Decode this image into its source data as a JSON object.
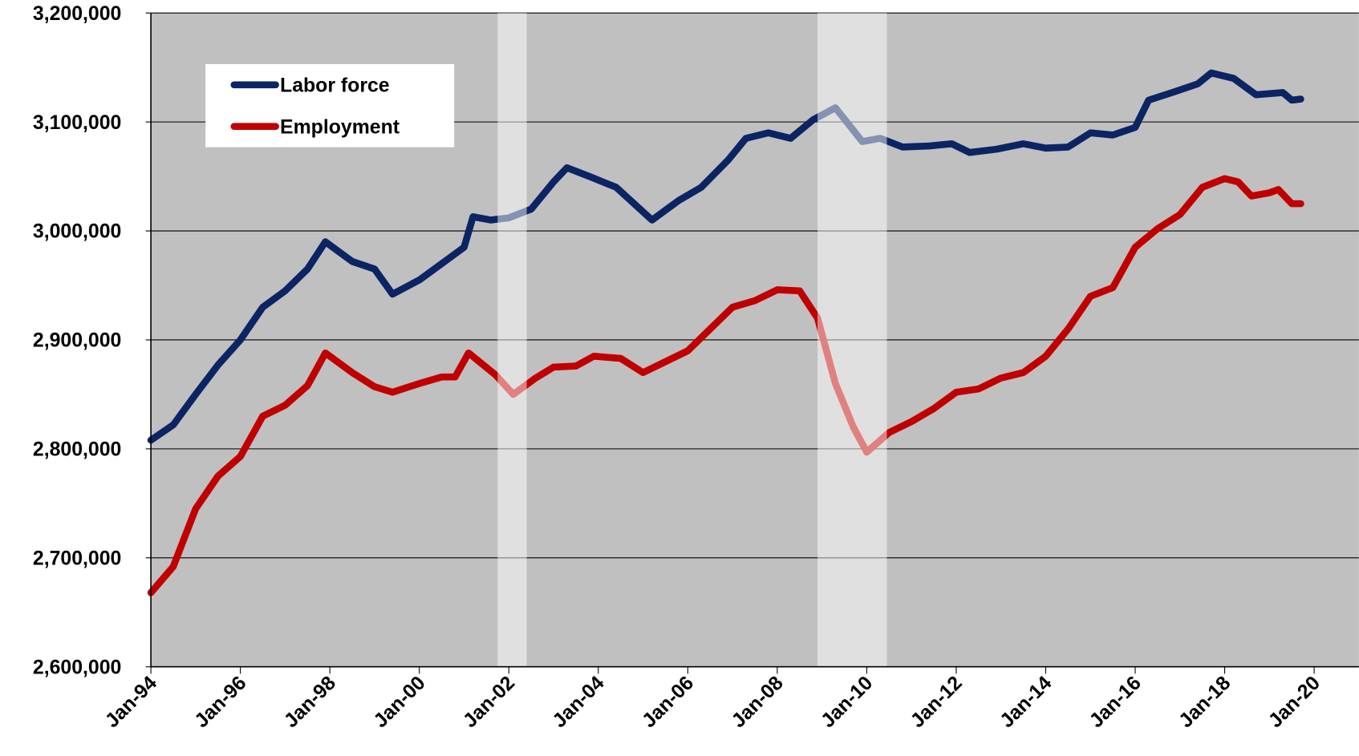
{
  "chart_data": {
    "type": "line",
    "xlim": [
      1994,
      2021
    ],
    "ylim": [
      2600000,
      3200000
    ],
    "xticks": [
      {
        "value": 1994,
        "label": "Jan-94"
      },
      {
        "value": 1996,
        "label": "Jan-96"
      },
      {
        "value": 1998,
        "label": "Jan-98"
      },
      {
        "value": 2000,
        "label": "Jan-00"
      },
      {
        "value": 2002,
        "label": "Jan-02"
      },
      {
        "value": 2004,
        "label": "Jan-04"
      },
      {
        "value": 2006,
        "label": "Jan-06"
      },
      {
        "value": 2008,
        "label": "Jan-08"
      },
      {
        "value": 2010,
        "label": "Jan-10"
      },
      {
        "value": 2012,
        "label": "Jan-12"
      },
      {
        "value": 2014,
        "label": "Jan-14"
      },
      {
        "value": 2016,
        "label": "Jan-16"
      },
      {
        "value": 2018,
        "label": "Jan-18"
      },
      {
        "value": 2020,
        "label": "Jan-20"
      }
    ],
    "yticks": [
      {
        "value": 2600000,
        "label": "2,600,000"
      },
      {
        "value": 2700000,
        "label": "2,700,000"
      },
      {
        "value": 2800000,
        "label": "2,800,000"
      },
      {
        "value": 2900000,
        "label": "2,900,000"
      },
      {
        "value": 3000000,
        "label": "3,000,000"
      },
      {
        "value": 3100000,
        "label": "3,100,000"
      },
      {
        "value": 3200000,
        "label": "3,200,000"
      }
    ],
    "grid": true,
    "background": "#c0c0c0",
    "shaded_ranges": [
      [
        2001.75,
        2002.4
      ],
      [
        2008.9,
        2010.45
      ]
    ],
    "legend": "upper left",
    "series": [
      {
        "name": "Labor force",
        "color": "#0b2463",
        "x": [
          1994.0,
          1994.5,
          1995.0,
          1995.5,
          1996.0,
          1996.5,
          1997.0,
          1997.5,
          1997.9,
          1998.5,
          1999.0,
          1999.4,
          2000.0,
          2000.5,
          2001.0,
          2001.2,
          2001.6,
          2002.0,
          2002.5,
          2003.0,
          2003.3,
          2003.8,
          2004.4,
          2004.8,
          2005.2,
          2005.8,
          2006.3,
          2006.9,
          2007.3,
          2007.8,
          2008.3,
          2008.8,
          2009.3,
          2009.9,
          2010.3,
          2010.8,
          2011.4,
          2011.9,
          2012.3,
          2012.9,
          2013.5,
          2014.0,
          2014.5,
          2015.0,
          2015.5,
          2016.0,
          2016.3,
          2016.9,
          2017.4,
          2017.7,
          2018.2,
          2018.7,
          2019.3,
          2019.5,
          2019.7
        ],
        "values": [
          2808000,
          2822000,
          2850000,
          2877000,
          2900000,
          2930000,
          2945000,
          2965000,
          2990000,
          2972000,
          2965000,
          2942000,
          2955000,
          2970000,
          2985000,
          3013000,
          3010000,
          3012000,
          3020000,
          3045000,
          3058000,
          3050000,
          3040000,
          3025000,
          3010000,
          3028000,
          3040000,
          3065000,
          3085000,
          3090000,
          3085000,
          3102000,
          3113000,
          3082000,
          3085000,
          3077000,
          3078000,
          3080000,
          3072000,
          3075000,
          3080000,
          3076000,
          3077000,
          3090000,
          3088000,
          3095000,
          3120000,
          3128000,
          3135000,
          3145000,
          3140000,
          3125000,
          3127000,
          3120000,
          3121000
        ]
      },
      {
        "name": "Employment",
        "color": "#c00000",
        "x": [
          1994.0,
          1994.5,
          1995.0,
          1995.5,
          1996.0,
          1996.5,
          1997.0,
          1997.5,
          1997.9,
          1998.5,
          1999.0,
          1999.4,
          2000.0,
          2000.5,
          2000.8,
          2001.1,
          2001.7,
          2002.1,
          2002.6,
          2003.0,
          2003.5,
          2003.9,
          2004.5,
          2005.0,
          2005.6,
          2006.0,
          2006.5,
          2007.0,
          2007.5,
          2008.0,
          2008.5,
          2008.9,
          2009.3,
          2009.7,
          2010.0,
          2010.5,
          2011.0,
          2011.5,
          2012.0,
          2012.5,
          2013.0,
          2013.5,
          2014.0,
          2014.5,
          2015.0,
          2015.5,
          2016.0,
          2016.5,
          2017.0,
          2017.5,
          2018.0,
          2018.3,
          2018.6,
          2019.0,
          2019.2,
          2019.5,
          2019.7
        ],
        "values": [
          2668000,
          2692000,
          2745000,
          2775000,
          2793000,
          2830000,
          2840000,
          2858000,
          2888000,
          2870000,
          2857000,
          2852000,
          2860000,
          2866000,
          2866000,
          2888000,
          2868000,
          2850000,
          2865000,
          2875000,
          2876000,
          2885000,
          2883000,
          2870000,
          2882000,
          2890000,
          2910000,
          2930000,
          2936000,
          2946000,
          2945000,
          2920000,
          2860000,
          2820000,
          2797000,
          2815000,
          2825000,
          2837000,
          2852000,
          2855000,
          2865000,
          2870000,
          2885000,
          2910000,
          2940000,
          2948000,
          2985000,
          3002000,
          3015000,
          3040000,
          3048000,
          3045000,
          3032000,
          3035000,
          3038000,
          3025000,
          3025000
        ]
      }
    ]
  }
}
